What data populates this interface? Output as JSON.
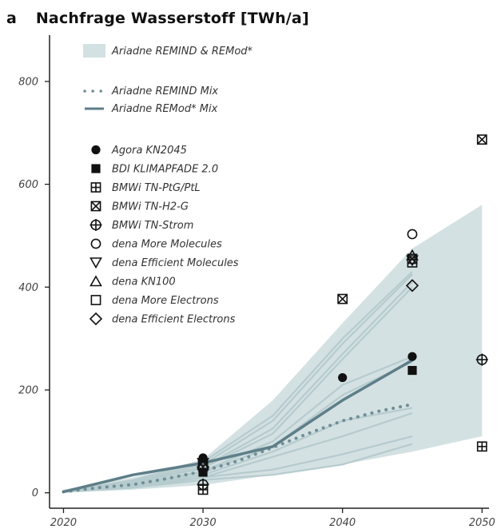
{
  "panel_letter": "a",
  "chart_data": {
    "type": "line",
    "title": "Nachfrage Wasserstoff [TWh/a]",
    "xlabel": "",
    "ylabel": "",
    "xlim": [
      2019,
      2050.5
    ],
    "ylim": [
      -30,
      890
    ],
    "x_ticks": [
      2020,
      2030,
      2040,
      2050
    ],
    "y_ticks": [
      0,
      200,
      400,
      600,
      800
    ],
    "grid": false,
    "colors": {
      "band": "#d4e1e3",
      "scenario_line": "#b6cbce",
      "mix_line": "#5e7e88",
      "mix_dots": "#6f8f96",
      "marker": "#111111"
    },
    "band": {
      "name": "Ariadne REMIND & REMod*",
      "x": [
        2020,
        2025,
        2030,
        2035,
        2040,
        2045,
        2050
      ],
      "upper": [
        6,
        30,
        65,
        180,
        330,
        475,
        560
      ],
      "lower": [
        0,
        6,
        15,
        35,
        55,
        80,
        110
      ]
    },
    "scenario_lines": [
      {
        "x": [
          2020,
          2025,
          2030,
          2035,
          2040,
          2045
        ],
        "values": [
          2,
          25,
          60,
          150,
          300,
          430
        ]
      },
      {
        "x": [
          2020,
          2025,
          2030,
          2035,
          2040,
          2045
        ],
        "values": [
          2,
          22,
          55,
          140,
          290,
          425
        ]
      },
      {
        "x": [
          2020,
          2025,
          2030,
          2035,
          2040,
          2045
        ],
        "values": [
          2,
          20,
          50,
          125,
          270,
          410
        ]
      },
      {
        "x": [
          2020,
          2025,
          2030,
          2035,
          2040,
          2045
        ],
        "values": [
          2,
          18,
          48,
          115,
          260,
          400
        ]
      },
      {
        "x": [
          2020,
          2025,
          2030,
          2035,
          2040,
          2045
        ],
        "values": [
          2,
          16,
          42,
          100,
          210,
          265
        ]
      },
      {
        "x": [
          2020,
          2025,
          2030,
          2035,
          2040,
          2045
        ],
        "values": [
          2,
          14,
          40,
          90,
          190,
          255
        ]
      },
      {
        "x": [
          2020,
          2025,
          2030,
          2035,
          2040,
          2045
        ],
        "values": [
          2,
          12,
          35,
          80,
          140,
          165
        ]
      },
      {
        "x": [
          2020,
          2025,
          2030,
          2035,
          2040,
          2045
        ],
        "values": [
          2,
          10,
          30,
          70,
          110,
          155
        ]
      },
      {
        "x": [
          2020,
          2025,
          2030,
          2035,
          2040,
          2045
        ],
        "values": [
          2,
          12,
          30,
          45,
          75,
          110
        ]
      },
      {
        "x": [
          2020,
          2025,
          2030,
          2035,
          2040,
          2045
        ],
        "values": [
          2,
          10,
          25,
          35,
          55,
          95
        ]
      }
    ],
    "series": [
      {
        "name": "Ariadne REMIND Mix",
        "style": "dotted",
        "x": [
          2020,
          2022.5,
          2025,
          2027.5,
          2030,
          2032.5,
          2035,
          2037.5,
          2040,
          2042.5,
          2045
        ],
        "values": [
          2,
          10,
          16,
          28,
          42,
          62,
          88,
          115,
          140,
          158,
          172
        ]
      },
      {
        "name": "Ariadne REMod* Mix",
        "style": "solid",
        "x": [
          2020,
          2025,
          2030,
          2035,
          2040,
          2045
        ],
        "values": [
          2,
          35,
          58,
          90,
          180,
          258
        ]
      }
    ],
    "point_series": [
      {
        "name": "Agora KN2045",
        "marker": "circle-filled",
        "points": [
          [
            2030,
            68
          ],
          [
            2040,
            224
          ],
          [
            2045,
            265
          ]
        ]
      },
      {
        "name": "BDI KLIMAPFADE 2.0",
        "marker": "square-filled",
        "points": [
          [
            2030,
            40
          ],
          [
            2045,
            238
          ]
        ]
      },
      {
        "name": "BMWi TN-PtG/PtL",
        "marker": "square-plus",
        "points": [
          [
            2030,
            6
          ],
          [
            2050,
            90
          ]
        ]
      },
      {
        "name": "BMWi TN-H2-G",
        "marker": "square-x",
        "points": [
          [
            2040,
            377
          ],
          [
            2045,
            455
          ],
          [
            2050,
            687
          ]
        ]
      },
      {
        "name": "BMWi TN-Strom",
        "marker": "circle-plus",
        "points": [
          [
            2030,
            16
          ],
          [
            2050,
            259
          ]
        ]
      },
      {
        "name": "dena More Molecules",
        "marker": "circle-open",
        "points": [
          [
            2030,
            62
          ],
          [
            2045,
            503
          ]
        ]
      },
      {
        "name": "dena Efficient Molecules",
        "marker": "triangle-down-open",
        "points": [
          [
            2030,
            58
          ],
          [
            2045,
            452
          ]
        ]
      },
      {
        "name": "dena KN100",
        "marker": "triangle-up-open",
        "points": [
          [
            2030,
            55
          ],
          [
            2045,
            462
          ]
        ]
      },
      {
        "name": "dena More Electrons",
        "marker": "square-open",
        "points": [
          [
            2030,
            52
          ],
          [
            2045,
            448
          ]
        ]
      },
      {
        "name": "dena Efficient Electrons",
        "marker": "diamond-open",
        "points": [
          [
            2030,
            50
          ],
          [
            2045,
            403
          ]
        ]
      }
    ]
  }
}
